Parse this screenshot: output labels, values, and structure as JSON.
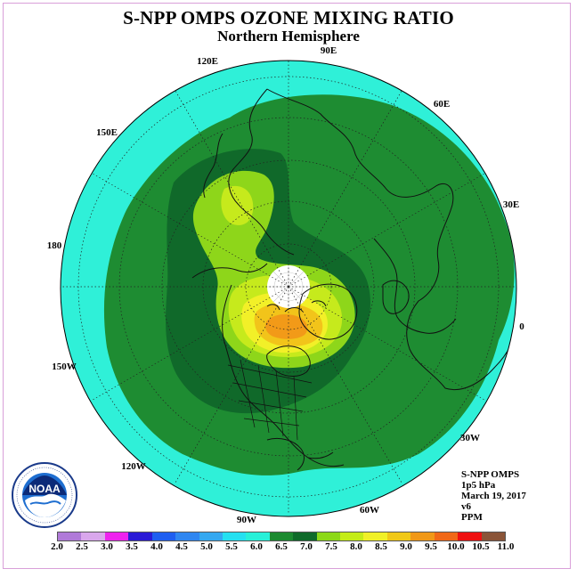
{
  "title": "S-NPP OMPS OZONE MIXING RATIO",
  "subtitle": "Northern Hemisphere",
  "longitude_labels": [
    {
      "id": "90E",
      "text": "90E"
    },
    {
      "id": "60E",
      "text": "60E"
    },
    {
      "id": "30E",
      "text": "30E"
    },
    {
      "id": "0",
      "text": "0"
    },
    {
      "id": "30W",
      "text": "30W"
    },
    {
      "id": "60W",
      "text": "60W"
    },
    {
      "id": "90W",
      "text": "90W"
    },
    {
      "id": "120W",
      "text": "120W"
    },
    {
      "id": "150W",
      "text": "150W"
    },
    {
      "id": "180",
      "text": "180"
    },
    {
      "id": "150E",
      "text": "150E"
    },
    {
      "id": "120E",
      "text": "120E"
    }
  ],
  "info": {
    "instrument": "S-NPP OMPS",
    "pressure": "1p5 hPa",
    "date": "March 19, 2017",
    "version": "v6",
    "units": "PPM"
  },
  "colorbar": {
    "labels": [
      "2.0",
      "2.5",
      "3.0",
      "3.5",
      "4.0",
      "4.5",
      "5.0",
      "5.5",
      "6.0",
      "6.5",
      "7.0",
      "7.5",
      "8.0",
      "8.5",
      "9.0",
      "9.5",
      "10.0",
      "10.5",
      "11.0"
    ],
    "colors": [
      "#b07ad8",
      "#d9a7ec",
      "#ee22ee",
      "#2a1ad6",
      "#1e5ef0",
      "#2f86f0",
      "#35a8f0",
      "#25e0f0",
      "#28f0d8",
      "#1c8a30",
      "#0f6a2a",
      "#8cd818",
      "#c4ec18",
      "#f0f028",
      "#f0c818",
      "#f09818",
      "#f06818",
      "#ee1010",
      "#8a5438"
    ]
  },
  "map_colors": {
    "c55": "#2ff0d8",
    "c60": "#1e8c32",
    "c65": "#10692a",
    "c70": "#8ed61a",
    "c75": "#c6ea1c",
    "c80": "#f2f028",
    "c85": "#f2c41a",
    "c90": "#f29a18"
  },
  "logo_text": "NOAA"
}
